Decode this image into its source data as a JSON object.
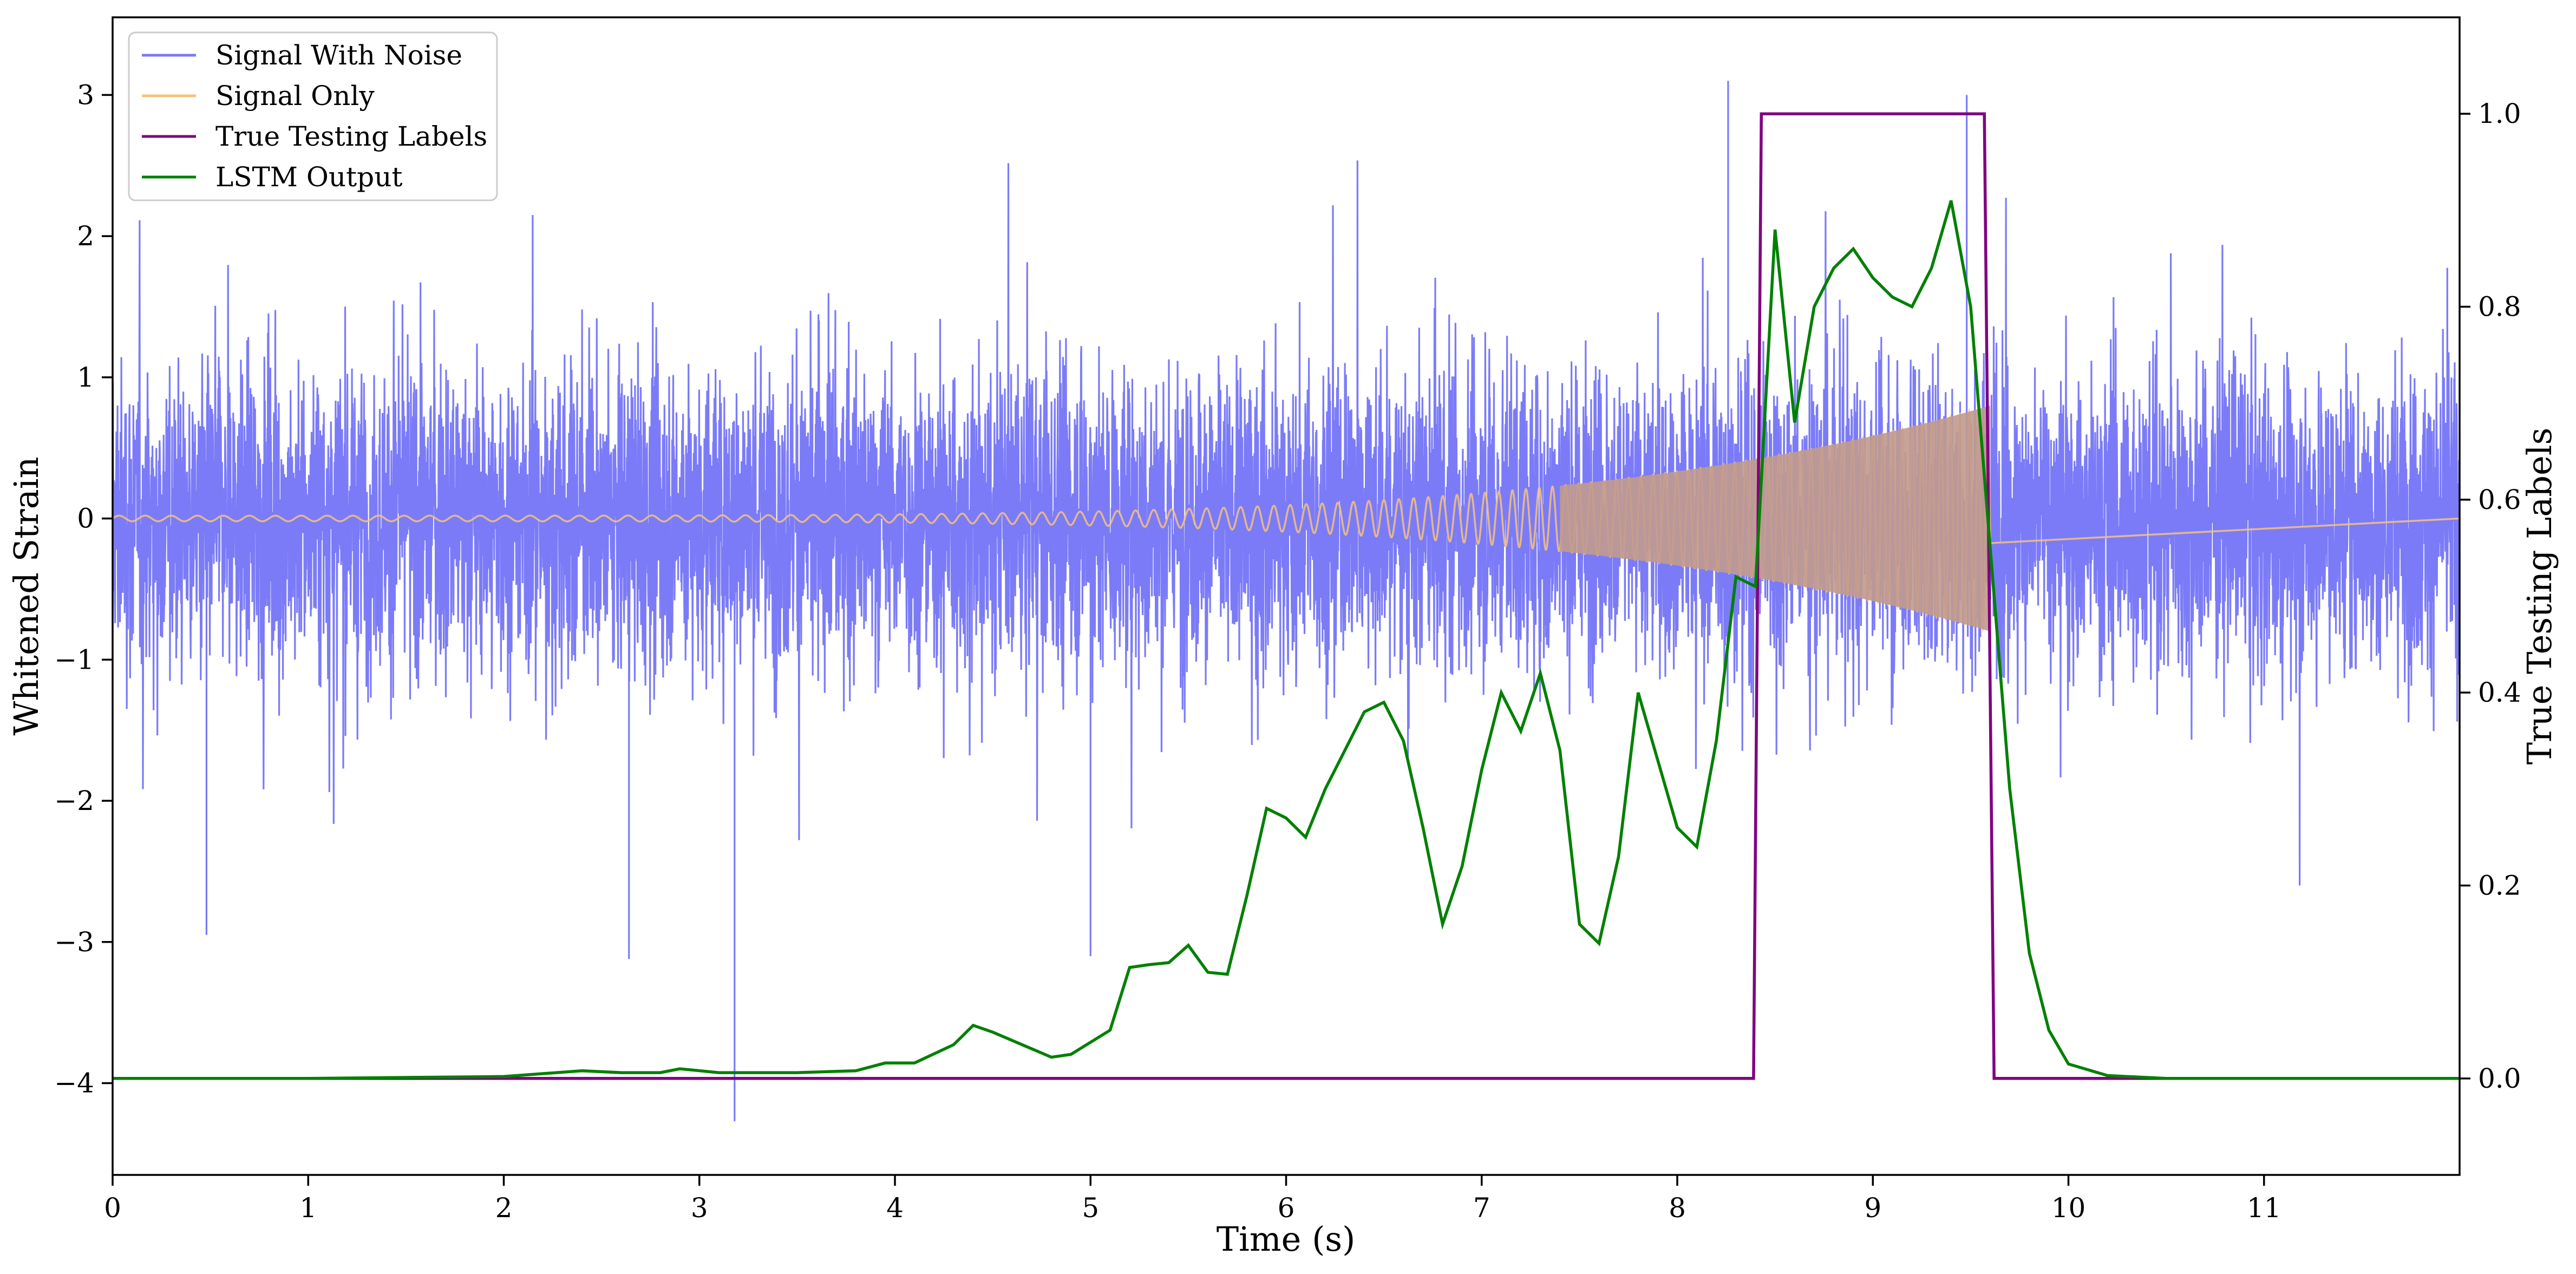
{
  "colors": {
    "signal_with_noise": "#7b7bf8",
    "signal_only": "#f7c27a",
    "signal_overlap": "#c19a8e",
    "true_labels": "#800080",
    "lstm_output": "#008000",
    "axes": "#000000",
    "background": "#ffffff"
  },
  "chart_data": {
    "type": "line",
    "xlabel": "Time (s)",
    "ylabel": "Whitened Strain",
    "ylabel_right": "True Testing Labels",
    "xlim": [
      0,
      12
    ],
    "ylim": [
      -4.65,
      3.55
    ],
    "ylim_right": [
      -0.1,
      1.1
    ],
    "x_ticks": [
      0,
      1,
      2,
      3,
      4,
      5,
      6,
      7,
      8,
      9,
      10,
      11
    ],
    "y_ticks": [
      -4,
      -3,
      -2,
      -1,
      0,
      1,
      2,
      3
    ],
    "y_ticks_right": [
      0.0,
      0.2,
      0.4,
      0.6,
      0.8,
      1.0
    ],
    "x_tick_labels": [
      "0",
      "1",
      "2",
      "3",
      "4",
      "5",
      "6",
      "7",
      "8",
      "9",
      "10",
      "11"
    ],
    "y_tick_labels": [
      "−4",
      "−3",
      "−2",
      "−1",
      "0",
      "1",
      "2",
      "3"
    ],
    "y_tick_labels_right": [
      "0.0",
      "0.2",
      "0.4",
      "0.6",
      "0.8",
      "1.0"
    ],
    "grid": false,
    "legend_position": "top-left",
    "series": [
      {
        "name": "Signal With Noise",
        "axis": "left",
        "kind": "noise",
        "noise_std": 0.75,
        "noise_range": [
          -2.6,
          2.6
        ],
        "outliers": [
          [
            3.18,
            -4.27
          ],
          [
            8.26,
            3.1
          ],
          [
            9.48,
            3.0
          ],
          [
            2.64,
            -3.12
          ],
          [
            0.48,
            -2.95
          ],
          [
            5.0,
            -3.1
          ]
        ]
      },
      {
        "name": "Signal Only",
        "axis": "left",
        "kind": "chirp",
        "start": 0,
        "end": 9.6,
        "amplitude_start": 0.02,
        "amplitude_end": 0.8
      },
      {
        "name": "True Testing Labels",
        "axis": "right",
        "x": [
          0,
          8.39,
          8.43,
          9.57,
          9.62,
          12
        ],
        "values": [
          0,
          0,
          1,
          1,
          0,
          0
        ]
      },
      {
        "name": "LSTM Output",
        "axis": "right",
        "x": [
          0,
          1.0,
          2.0,
          2.4,
          2.6,
          2.8,
          2.9,
          3.1,
          3.5,
          3.8,
          3.95,
          4.1,
          4.3,
          4.4,
          4.5,
          4.8,
          4.9,
          5.1,
          5.2,
          5.3,
          5.4,
          5.5,
          5.6,
          5.7,
          5.8,
          5.9,
          6.0,
          6.1,
          6.2,
          6.3,
          6.4,
          6.5,
          6.6,
          6.7,
          6.8,
          6.9,
          7.0,
          7.1,
          7.2,
          7.3,
          7.4,
          7.5,
          7.6,
          7.7,
          7.8,
          7.9,
          8.0,
          8.1,
          8.2,
          8.3,
          8.4,
          8.5,
          8.6,
          8.7,
          8.8,
          8.9,
          9.0,
          9.1,
          9.2,
          9.3,
          9.4,
          9.5,
          9.6,
          9.7,
          9.8,
          9.9,
          10.0,
          10.2,
          10.5,
          12
        ],
        "values": [
          0.0,
          0.0,
          0.002,
          0.008,
          0.006,
          0.006,
          0.01,
          0.006,
          0.006,
          0.008,
          0.016,
          0.016,
          0.035,
          0.055,
          0.048,
          0.022,
          0.025,
          0.05,
          0.115,
          0.118,
          0.12,
          0.138,
          0.11,
          0.108,
          0.19,
          0.28,
          0.27,
          0.25,
          0.3,
          0.34,
          0.38,
          0.39,
          0.35,
          0.26,
          0.16,
          0.22,
          0.32,
          0.4,
          0.36,
          0.42,
          0.34,
          0.16,
          0.14,
          0.23,
          0.4,
          0.33,
          0.26,
          0.24,
          0.35,
          0.52,
          0.51,
          0.88,
          0.68,
          0.8,
          0.84,
          0.86,
          0.83,
          0.81,
          0.8,
          0.84,
          0.91,
          0.8,
          0.55,
          0.3,
          0.13,
          0.05,
          0.015,
          0.003,
          0.0,
          0.0
        ]
      }
    ]
  }
}
